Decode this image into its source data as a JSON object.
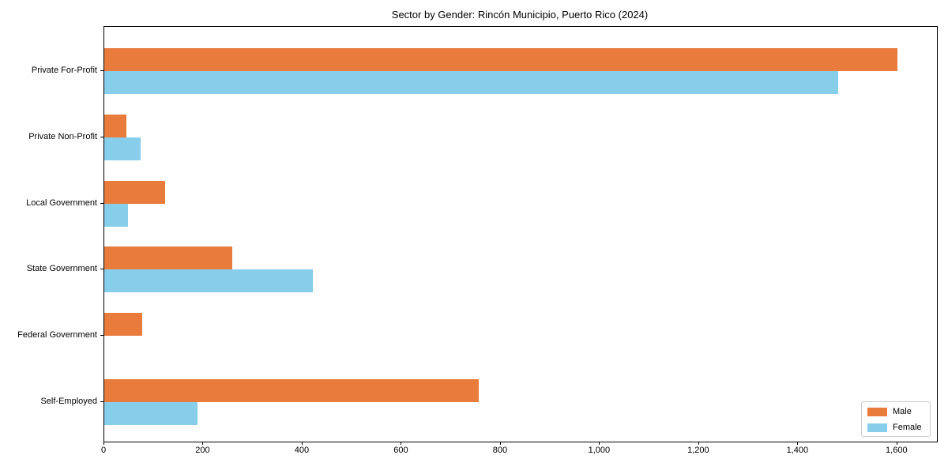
{
  "chart_data": {
    "type": "bar",
    "orientation": "horizontal",
    "title": "Sector by Gender: Rincón Municipio, Puerto Rico (2024)",
    "categories": [
      "Private For-Profit",
      "Private Non-Profit",
      "Local Government",
      "State Government",
      "Federal Government",
      "Self-Employed"
    ],
    "series": [
      {
        "name": "Male",
        "color": "#E97B3C",
        "values": [
          1600,
          45,
          122,
          258,
          76,
          755
        ]
      },
      {
        "name": "Female",
        "color": "#87CEEB",
        "values": [
          1480,
          73,
          48,
          420,
          0,
          188
        ]
      }
    ],
    "xlabel": "",
    "ylabel": "",
    "xlim": [
      0,
      1680
    ],
    "x_ticks": [
      {
        "value": 0,
        "label": "0"
      },
      {
        "value": 200,
        "label": "200"
      },
      {
        "value": 400,
        "label": "400"
      },
      {
        "value": 600,
        "label": "600"
      },
      {
        "value": 800,
        "label": "800"
      },
      {
        "value": 1000,
        "label": "1,000"
      },
      {
        "value": 1200,
        "label": "1,200"
      },
      {
        "value": 1400,
        "label": "1,400"
      },
      {
        "value": 1600,
        "label": "1,600"
      }
    ],
    "legend": {
      "position": "lower right"
    },
    "grid": false,
    "background": "#ffffff"
  }
}
